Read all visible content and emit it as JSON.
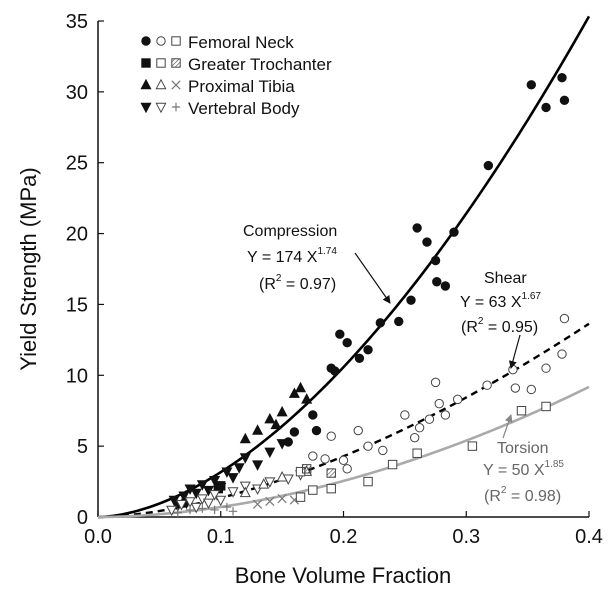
{
  "chart_data": {
    "type": "scatter",
    "title": "",
    "xlabel": "Bone Volume Fraction",
    "ylabel": "Yield Strength (MPa)",
    "xlim": [
      0,
      0.4
    ],
    "ylim": [
      0,
      35
    ],
    "xticks": [
      "0.0",
      "0.1",
      "0.2",
      "0.3",
      "0.4"
    ],
    "yticks": [
      "0",
      "5",
      "10",
      "15",
      "20",
      "25",
      "30",
      "35"
    ],
    "legend_position": "top-left",
    "legend": [
      {
        "label": "Femoral Neck",
        "markers": [
          "filled-circle",
          "open-circle",
          "open-square"
        ]
      },
      {
        "label": "Greater Trochanter",
        "markers": [
          "filled-square",
          "open-square",
          "hatched-square"
        ]
      },
      {
        "label": "Proximal Tibia",
        "markers": [
          "filled-triangle-up",
          "open-triangle-up",
          "cross-x"
        ]
      },
      {
        "label": "Vertebral Body",
        "markers": [
          "filled-triangle-down",
          "open-triangle-down",
          "plus"
        ]
      }
    ],
    "fits": [
      {
        "name": "Compression",
        "a": 174,
        "b": 1.74,
        "equation": "Y = 174 X",
        "exponent": "1.74",
        "r2_pre": "(R",
        "r2_post": " = 0.97)",
        "style": "solid",
        "color": "#000000"
      },
      {
        "name": "Shear",
        "a": 63,
        "b": 1.67,
        "equation": "Y = 63 X",
        "exponent": "1.67",
        "r2_pre": "(R",
        "r2_post": " = 0.95)",
        "style": "dashed",
        "color": "#000000"
      },
      {
        "name": "Torsion",
        "a": 50,
        "b": 1.85,
        "equation": "Y = 50 X",
        "exponent": "1.85",
        "r2_pre": "(R",
        "r2_post": " = 0.98)",
        "style": "solid",
        "color": "#aaaaaa"
      }
    ],
    "series": [
      {
        "test": "Compression",
        "points": [
          {
            "x": 0.062,
            "y": 1.2,
            "m": "tri-down-filled"
          },
          {
            "x": 0.065,
            "y": 0.8,
            "m": "tri-down-filled"
          },
          {
            "x": 0.07,
            "y": 1.5,
            "m": "tri-down-filled"
          },
          {
            "x": 0.072,
            "y": 1.0,
            "m": "tri-down-filled"
          },
          {
            "x": 0.075,
            "y": 2.0,
            "m": "tri-down-filled"
          },
          {
            "x": 0.08,
            "y": 1.7,
            "m": "tri-down-filled"
          },
          {
            "x": 0.085,
            "y": 2.3,
            "m": "tri-down-filled"
          },
          {
            "x": 0.09,
            "y": 1.9,
            "m": "tri-down-filled"
          },
          {
            "x": 0.095,
            "y": 2.6,
            "m": "tri-down-filled"
          },
          {
            "x": 0.1,
            "y": 2.1,
            "m": "tri-down-filled"
          },
          {
            "x": 0.105,
            "y": 3.2,
            "m": "tri-down-filled"
          },
          {
            "x": 0.11,
            "y": 2.8,
            "m": "tri-down-filled"
          },
          {
            "x": 0.115,
            "y": 3.5,
            "m": "tri-down-filled"
          },
          {
            "x": 0.12,
            "y": 4.2,
            "m": "tri-down-filled"
          },
          {
            "x": 0.13,
            "y": 3.7,
            "m": "tri-down-filled"
          },
          {
            "x": 0.14,
            "y": 4.6,
            "m": "tri-down-filled"
          },
          {
            "x": 0.15,
            "y": 5.2,
            "m": "tri-down-filled"
          },
          {
            "x": 0.098,
            "y": 2.0,
            "m": "square-filled"
          },
          {
            "x": 0.1,
            "y": 2.2,
            "m": "square-filled"
          },
          {
            "x": 0.12,
            "y": 5.5,
            "m": "tri-up-filled"
          },
          {
            "x": 0.13,
            "y": 6.1,
            "m": "tri-up-filled"
          },
          {
            "x": 0.14,
            "y": 6.9,
            "m": "tri-up-filled"
          },
          {
            "x": 0.145,
            "y": 6.5,
            "m": "tri-up-filled"
          },
          {
            "x": 0.15,
            "y": 7.4,
            "m": "tri-up-filled"
          },
          {
            "x": 0.16,
            "y": 8.7,
            "m": "tri-up-filled"
          },
          {
            "x": 0.165,
            "y": 9.1,
            "m": "tri-up-filled"
          },
          {
            "x": 0.17,
            "y": 8.3,
            "m": "tri-up-filled"
          },
          {
            "x": 0.16,
            "y": 6.0,
            "m": "circle-filled"
          },
          {
            "x": 0.155,
            "y": 5.3,
            "m": "circle-filled"
          },
          {
            "x": 0.175,
            "y": 7.2,
            "m": "circle-filled"
          },
          {
            "x": 0.178,
            "y": 6.1,
            "m": "circle-filled"
          },
          {
            "x": 0.19,
            "y": 10.5,
            "m": "circle-filled"
          },
          {
            "x": 0.193,
            "y": 10.3,
            "m": "circle-filled"
          },
          {
            "x": 0.197,
            "y": 12.9,
            "m": "circle-filled"
          },
          {
            "x": 0.203,
            "y": 12.3,
            "m": "circle-filled"
          },
          {
            "x": 0.213,
            "y": 11.2,
            "m": "circle-filled"
          },
          {
            "x": 0.22,
            "y": 11.8,
            "m": "circle-filled"
          },
          {
            "x": 0.23,
            "y": 13.7,
            "m": "circle-filled"
          },
          {
            "x": 0.245,
            "y": 13.8,
            "m": "circle-filled"
          },
          {
            "x": 0.255,
            "y": 15.3,
            "m": "circle-filled"
          },
          {
            "x": 0.26,
            "y": 20.4,
            "m": "circle-filled"
          },
          {
            "x": 0.268,
            "y": 19.4,
            "m": "circle-filled"
          },
          {
            "x": 0.275,
            "y": 18.1,
            "m": "circle-filled"
          },
          {
            "x": 0.276,
            "y": 16.6,
            "m": "circle-filled"
          },
          {
            "x": 0.283,
            "y": 16.3,
            "m": "circle-filled"
          },
          {
            "x": 0.29,
            "y": 20.1,
            "m": "circle-filled"
          },
          {
            "x": 0.318,
            "y": 24.8,
            "m": "circle-filled"
          },
          {
            "x": 0.353,
            "y": 30.5,
            "m": "circle-filled"
          },
          {
            "x": 0.365,
            "y": 28.9,
            "m": "circle-filled"
          },
          {
            "x": 0.378,
            "y": 31.0,
            "m": "circle-filled"
          },
          {
            "x": 0.38,
            "y": 29.4,
            "m": "circle-filled"
          }
        ]
      },
      {
        "test": "Shear",
        "points": [
          {
            "x": 0.06,
            "y": 0.5,
            "m": "tri-down-open"
          },
          {
            "x": 0.068,
            "y": 0.9,
            "m": "tri-down-open"
          },
          {
            "x": 0.075,
            "y": 1.1,
            "m": "tri-down-open"
          },
          {
            "x": 0.08,
            "y": 0.7,
            "m": "tri-down-open"
          },
          {
            "x": 0.085,
            "y": 1.3,
            "m": "tri-down-open"
          },
          {
            "x": 0.09,
            "y": 1.0,
            "m": "tri-down-open"
          },
          {
            "x": 0.095,
            "y": 1.6,
            "m": "tri-down-open"
          },
          {
            "x": 0.1,
            "y": 1.2,
            "m": "tri-down-open"
          },
          {
            "x": 0.11,
            "y": 1.8,
            "m": "tri-down-open"
          },
          {
            "x": 0.12,
            "y": 2.2,
            "m": "tri-down-open"
          },
          {
            "x": 0.13,
            "y": 2.0,
            "m": "tri-down-open"
          },
          {
            "x": 0.14,
            "y": 2.5,
            "m": "tri-down-open"
          },
          {
            "x": 0.155,
            "y": 2.7,
            "m": "tri-down-open"
          },
          {
            "x": 0.165,
            "y": 3.0,
            "m": "tri-down-open"
          },
          {
            "x": 0.12,
            "y": 1.7,
            "m": "tri-up-open"
          },
          {
            "x": 0.135,
            "y": 2.3,
            "m": "tri-up-open"
          },
          {
            "x": 0.15,
            "y": 2.8,
            "m": "tri-up-open"
          },
          {
            "x": 0.17,
            "y": 3.2,
            "m": "tri-up-open"
          },
          {
            "x": 0.165,
            "y": 3.2,
            "m": "square-open"
          },
          {
            "x": 0.19,
            "y": 3.1,
            "m": "square-hatch"
          },
          {
            "x": 0.17,
            "y": 3.4,
            "m": "square-hatch"
          },
          {
            "x": 0.175,
            "y": 4.3,
            "m": "circle-open"
          },
          {
            "x": 0.185,
            "y": 4.1,
            "m": "circle-open"
          },
          {
            "x": 0.19,
            "y": 5.7,
            "m": "circle-open"
          },
          {
            "x": 0.2,
            "y": 4.0,
            "m": "circle-open"
          },
          {
            "x": 0.203,
            "y": 3.4,
            "m": "circle-open"
          },
          {
            "x": 0.212,
            "y": 6.1,
            "m": "circle-open"
          },
          {
            "x": 0.22,
            "y": 5.0,
            "m": "circle-open"
          },
          {
            "x": 0.232,
            "y": 4.7,
            "m": "circle-open"
          },
          {
            "x": 0.25,
            "y": 7.2,
            "m": "circle-open"
          },
          {
            "x": 0.258,
            "y": 5.6,
            "m": "circle-open"
          },
          {
            "x": 0.262,
            "y": 6.3,
            "m": "circle-open"
          },
          {
            "x": 0.27,
            "y": 6.9,
            "m": "circle-open"
          },
          {
            "x": 0.275,
            "y": 9.5,
            "m": "circle-open"
          },
          {
            "x": 0.278,
            "y": 8.0,
            "m": "circle-open"
          },
          {
            "x": 0.283,
            "y": 7.2,
            "m": "circle-open"
          },
          {
            "x": 0.293,
            "y": 8.3,
            "m": "circle-open"
          },
          {
            "x": 0.317,
            "y": 9.3,
            "m": "circle-open"
          },
          {
            "x": 0.338,
            "y": 10.4,
            "m": "circle-open"
          },
          {
            "x": 0.34,
            "y": 9.1,
            "m": "circle-open"
          },
          {
            "x": 0.353,
            "y": 9.0,
            "m": "circle-open"
          },
          {
            "x": 0.365,
            "y": 10.5,
            "m": "circle-open"
          },
          {
            "x": 0.378,
            "y": 11.5,
            "m": "circle-open"
          },
          {
            "x": 0.38,
            "y": 14.0,
            "m": "circle-open"
          }
        ]
      },
      {
        "test": "Torsion",
        "points": [
          {
            "x": 0.065,
            "y": 0.3,
            "m": "plus"
          },
          {
            "x": 0.075,
            "y": 0.5,
            "m": "plus"
          },
          {
            "x": 0.085,
            "y": 0.6,
            "m": "plus"
          },
          {
            "x": 0.095,
            "y": 0.5,
            "m": "plus"
          },
          {
            "x": 0.105,
            "y": 0.7,
            "m": "plus"
          },
          {
            "x": 0.11,
            "y": 0.4,
            "m": "plus"
          },
          {
            "x": 0.13,
            "y": 0.9,
            "m": "cross"
          },
          {
            "x": 0.14,
            "y": 1.1,
            "m": "cross"
          },
          {
            "x": 0.15,
            "y": 1.3,
            "m": "cross"
          },
          {
            "x": 0.16,
            "y": 1.2,
            "m": "cross"
          },
          {
            "x": 0.165,
            "y": 1.4,
            "m": "square-open"
          },
          {
            "x": 0.175,
            "y": 1.9,
            "m": "square-open"
          },
          {
            "x": 0.19,
            "y": 2.0,
            "m": "square-open"
          },
          {
            "x": 0.22,
            "y": 2.5,
            "m": "square-open"
          },
          {
            "x": 0.24,
            "y": 3.7,
            "m": "square-open"
          },
          {
            "x": 0.26,
            "y": 4.5,
            "m": "square-open"
          },
          {
            "x": 0.305,
            "y": 5.0,
            "m": "square-open"
          },
          {
            "x": 0.345,
            "y": 7.5,
            "m": "square-open"
          },
          {
            "x": 0.365,
            "y": 7.8,
            "m": "square-open"
          }
        ]
      }
    ]
  }
}
